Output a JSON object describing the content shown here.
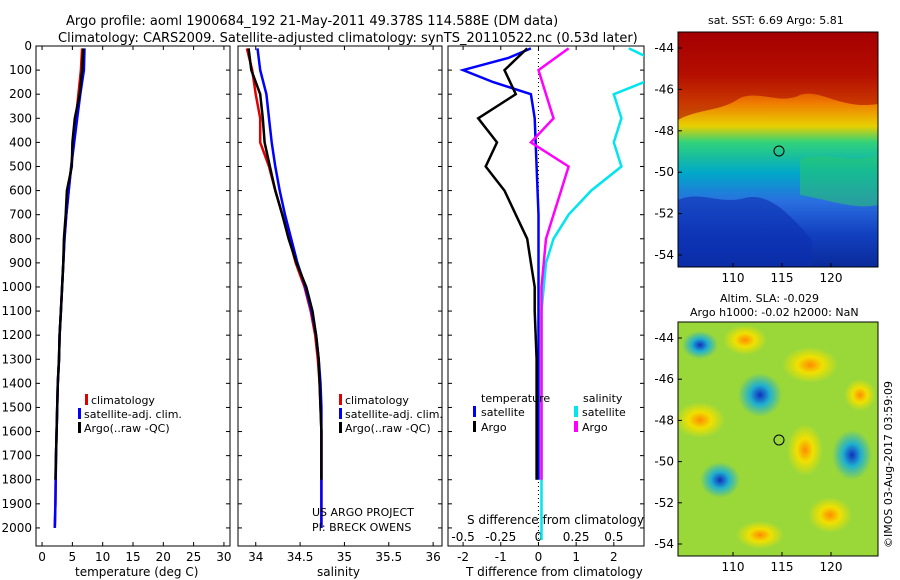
{
  "header": {
    "line1": "Argo profile: aoml 1900684_192 21-May-2011 49.378S 114.588E (DM data)",
    "line2": "Climatology: CARS2009. Satellite-adjusted climatology: synTS_20110522.nc (0.53d later)"
  },
  "credits": {
    "project": "US ARGO PROJECT",
    "pi": "PI: BRECK OWENS",
    "imos": "©IMOS 03-Aug-2017 03:59:09"
  },
  "colors": {
    "climatology": "#e00000",
    "satellite": "#0000ff",
    "argo": "#000000",
    "sal_satellite": "#00e5ee",
    "sal_argo": "#ff00ff"
  },
  "chart_data": [
    {
      "type": "line",
      "id": "temperature",
      "xlabel": "temperature (deg C)",
      "ylim": [
        2075,
        0
      ],
      "xlim": [
        -1,
        31
      ],
      "xticks": [
        0,
        5,
        10,
        15,
        20,
        25,
        30
      ],
      "yticks": [
        0,
        100,
        200,
        300,
        400,
        500,
        600,
        700,
        800,
        900,
        1000,
        1100,
        1200,
        1300,
        1400,
        1500,
        1600,
        1700,
        1800,
        1900,
        2000
      ],
      "legend": [
        "climatology",
        "satellite-adj. clim.",
        "Argo(..raw -QC)"
      ],
      "series": [
        {
          "name": "climatology",
          "x": [
            6.6,
            6.4,
            6.0,
            5.6,
            5.2,
            4.8,
            4.4,
            4.0,
            3.7,
            3.5,
            3.3,
            3.1,
            2.9,
            2.8,
            2.6,
            2.5,
            2.4,
            2.3,
            2.2,
            2.1
          ],
          "y": [
            10,
            100,
            200,
            300,
            400,
            500,
            600,
            700,
            800,
            900,
            1000,
            1100,
            1200,
            1300,
            1400,
            1500,
            1600,
            1700,
            1900,
            2000
          ]
        },
        {
          "name": "satellite-adj. clim.",
          "x": [
            7.0,
            6.9,
            6.3,
            5.8,
            5.3,
            4.8,
            4.4,
            4.0,
            3.7,
            3.5,
            3.3,
            3.1,
            2.9,
            2.8,
            2.6,
            2.5,
            2.4,
            2.3,
            2.2,
            2.1
          ],
          "y": [
            10,
            100,
            200,
            300,
            400,
            500,
            600,
            700,
            800,
            900,
            1000,
            1100,
            1200,
            1300,
            1400,
            1500,
            1600,
            1700,
            1900,
            2000
          ]
        },
        {
          "name": "Argo(..raw -QC)",
          "x": [
            6.8,
            6.6,
            6.2,
            5.4,
            5.0,
            4.9,
            4.1,
            3.9,
            3.6,
            3.5,
            3.3,
            3.1,
            2.9,
            2.8,
            2.6,
            2.5,
            2.4,
            2.3,
            2.2
          ],
          "y": [
            10,
            100,
            200,
            300,
            400,
            500,
            600,
            700,
            800,
            900,
            1000,
            1100,
            1200,
            1300,
            1400,
            1500,
            1600,
            1700,
            1800
          ]
        }
      ]
    },
    {
      "type": "line",
      "id": "salinity",
      "xlabel": "salinity",
      "ylim": [
        2075,
        0
      ],
      "xlim": [
        33.8,
        36.1
      ],
      "xticks": [
        34,
        34.5,
        35,
        35.5,
        36
      ],
      "xtick_labels": [
        "34",
        "34.5",
        "35",
        "35.5",
        "36"
      ],
      "legend": [
        "climatology",
        "satellite-adj. clim.",
        "Argo(..raw -QC)"
      ],
      "series": [
        {
          "name": "climatology",
          "x": [
            33.9,
            33.96,
            34.0,
            34.05,
            34.05,
            34.15,
            34.22,
            34.3,
            34.38,
            34.45,
            34.55,
            34.62,
            34.67,
            34.7,
            34.72,
            34.73,
            34.74,
            34.74,
            34.74
          ],
          "y": [
            10,
            100,
            200,
            300,
            400,
            500,
            600,
            700,
            800,
            900,
            1000,
            1100,
            1200,
            1300,
            1400,
            1500,
            1600,
            1800,
            2000
          ]
        },
        {
          "name": "satellite-adj. clim.",
          "x": [
            34.02,
            34.05,
            34.12,
            34.15,
            34.18,
            34.22,
            34.27,
            34.33,
            34.4,
            34.47,
            34.56,
            34.63,
            34.68,
            34.71,
            34.73,
            34.74,
            34.74,
            34.74,
            34.74
          ],
          "y": [
            10,
            100,
            200,
            300,
            400,
            500,
            600,
            700,
            800,
            900,
            1000,
            1100,
            1200,
            1300,
            1400,
            1500,
            1600,
            1800,
            2000
          ]
        },
        {
          "name": "Argo(..raw -QC)",
          "x": [
            33.92,
            33.95,
            34.05,
            34.08,
            34.1,
            34.16,
            34.22,
            34.3,
            34.37,
            34.46,
            34.57,
            34.64,
            34.68,
            34.71,
            34.72,
            34.73,
            34.74,
            34.74
          ],
          "y": [
            10,
            100,
            200,
            300,
            400,
            500,
            600,
            700,
            800,
            900,
            1000,
            1100,
            1200,
            1300,
            1400,
            1500,
            1600,
            1800
          ]
        }
      ]
    },
    {
      "type": "line",
      "id": "difference",
      "xlabel": "T difference from climatology",
      "xlabel_top": "S difference from climatology",
      "ylim": [
        2075,
        0
      ],
      "xlim": [
        -2.4,
        2.8
      ],
      "xticks": [
        -2,
        -1,
        0,
        1,
        2
      ],
      "xticks_s": [
        -0.5,
        -0.25,
        0,
        0.25,
        0.5
      ],
      "xtick_labels_s": [
        "-0.5",
        "-0.25",
        "0",
        "0.25",
        "0.5"
      ],
      "legend_title_t": "temperature",
      "legend_title_s": "salinity",
      "legend": [
        "satellite",
        "Argo",
        "satellite",
        "Argo"
      ],
      "series": [
        {
          "name": "satellite",
          "x": [
            -0.2,
            -0.8,
            -2.0,
            -1.2,
            -0.2,
            -0.1,
            -0.05,
            0,
            0,
            0,
            0,
            0,
            0,
            0
          ],
          "y": [
            10,
            50,
            100,
            150,
            200,
            300,
            500,
            700,
            900,
            1100,
            1300,
            1500,
            1700,
            1800
          ]
        },
        {
          "name": "Argo",
          "x": [
            -0.3,
            -0.9,
            -0.6,
            -1.6,
            -1.1,
            -1.4,
            -0.9,
            -0.6,
            -0.3,
            -0.2,
            -0.1,
            -0.1,
            -0.05,
            -0.05
          ],
          "y": [
            10,
            100,
            200,
            300,
            400,
            500,
            600,
            700,
            800,
            900,
            1000,
            1100,
            1300,
            1800
          ]
        },
        {
          "name": "sal satellite",
          "x": [
            0.6,
            0.9,
            0.5,
            0.55,
            0.5,
            0.55,
            0.35,
            0.2,
            0.1,
            0.05,
            0.02,
            0.02,
            0.02,
            0.02
          ],
          "y": [
            10,
            100,
            200,
            300,
            400,
            500,
            600,
            700,
            800,
            900,
            1100,
            1300,
            1700,
            2050
          ]
        },
        {
          "name": "sal Argo",
          "x": [
            0.2,
            0.0,
            0.05,
            0.1,
            -0.05,
            0.2,
            0.15,
            0.1,
            0.05,
            0.02,
            0.02,
            0.02
          ],
          "y": [
            10,
            100,
            200,
            300,
            400,
            500,
            600,
            700,
            800,
            1000,
            1300,
            1800
          ]
        }
      ]
    }
  ],
  "maps": {
    "sst": {
      "title": "sat. SST: 6.69  Argo: 5.81",
      "yticks": [
        "-44",
        "-46",
        "-48",
        "-50",
        "-52",
        "-54"
      ],
      "xticks": [
        "110",
        "115",
        "120"
      ]
    },
    "sla": {
      "title1": "Altim. SLA: -0.029",
      "title2": "Argo h1000: -0.02 h2000: NaN",
      "yticks": [
        "-44",
        "-46",
        "-48",
        "-50",
        "-52",
        "-54"
      ],
      "xticks": [
        "110",
        "115",
        "120"
      ]
    }
  }
}
